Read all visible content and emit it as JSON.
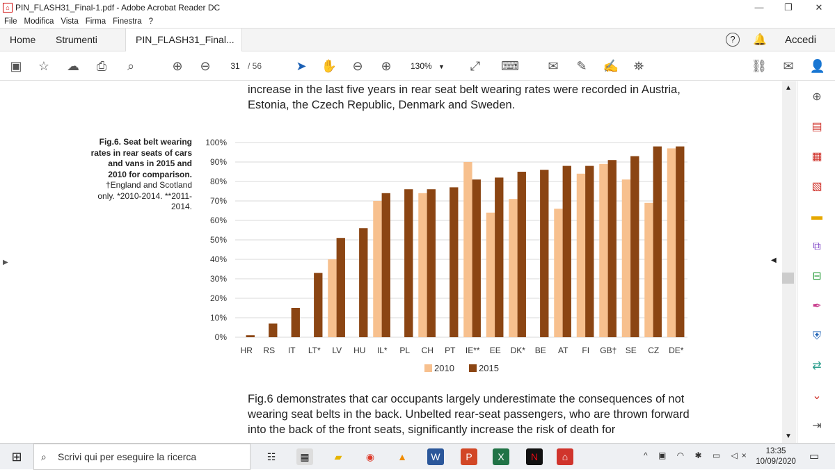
{
  "window": {
    "title": "PIN_FLASH31_Final-1.pdf - Adobe Acrobat Reader DC"
  },
  "menu": [
    "File",
    "Modifica",
    "Vista",
    "Firma",
    "Finestra",
    "?"
  ],
  "tabs": {
    "home": "Home",
    "tools": "Strumenti",
    "document": "PIN_FLASH31_Final...",
    "signin": "Accedi"
  },
  "toolbar": {
    "page_current": "31",
    "page_total": "/ 56",
    "zoom": "130%"
  },
  "document": {
    "para_top": "increase in the last five years in rear seat belt wearing rates were recorded in Austria, Estonia, the Czech Republic, Denmark and Sweden.",
    "para_bottom": "Fig.6 demonstrates that car occupants largely underestimate the consequences of not wearing seat belts in the back. Unbelted rear-seat passengers, who are thrown forward into the back of the front seats, significantly increase the risk of death for",
    "caption_bold": "Fig.6. Seat belt wearing rates in rear seats of cars and vans in 2015 and 2010 for comparison.",
    "caption_note": "†England and Scotland only. *2010-2014. **2011-2014."
  },
  "chart_data": {
    "type": "bar",
    "categories": [
      "HR",
      "RS",
      "IT",
      "LT*",
      "LV",
      "HU",
      "IL*",
      "PL",
      "CH",
      "PT",
      "IE**",
      "EE",
      "DK*",
      "BE",
      "AT",
      "FI",
      "GB†",
      "SE",
      "CZ",
      "DE*"
    ],
    "series": [
      {
        "name": "2010",
        "color": "#f7c08e",
        "values": [
          null,
          null,
          null,
          null,
          40,
          null,
          70,
          null,
          74,
          null,
          90,
          64,
          71,
          null,
          66,
          84,
          89,
          81,
          69,
          97
        ]
      },
      {
        "name": "2015",
        "color": "#8b4513",
        "values": [
          1,
          7,
          15,
          33,
          51,
          56,
          74,
          76,
          76,
          77,
          81,
          82,
          85,
          86,
          88,
          88,
          91,
          93,
          98,
          98
        ]
      }
    ],
    "yticks": [
      "0%",
      "10%",
      "20%",
      "30%",
      "40%",
      "50%",
      "60%",
      "70%",
      "80%",
      "90%",
      "100%"
    ],
    "ylim": [
      0,
      100
    ],
    "legend": "bottom"
  },
  "taskbar": {
    "search_placeholder": "Scrivi qui per eseguire la ricerca",
    "time": "13:35",
    "date": "10/09/2020"
  }
}
